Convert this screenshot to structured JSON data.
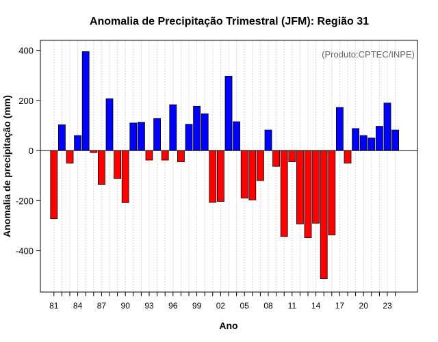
{
  "chart_data": {
    "type": "bar",
    "title": "Anomalia de Precipitação Trimestral (JFM): Região 31",
    "xlabel": "Ano",
    "ylabel": "Anomalia de precipitação (mm)",
    "annotation": "(Produto:CPTEC/INPE)",
    "ylim": [
      -565,
      440
    ],
    "yticks": [
      400,
      200,
      0,
      -200,
      -400
    ],
    "ytick_labels": [
      "400",
      "200",
      "0",
      "-200",
      "-400"
    ],
    "grid": "vertical dotted",
    "categories": [
      "1981",
      "1982",
      "1983",
      "1984",
      "1985",
      "1986",
      "1987",
      "1988",
      "1989",
      "1990",
      "1991",
      "1992",
      "1993",
      "1994",
      "1995",
      "1996",
      "1997",
      "1998",
      "1999",
      "2000",
      "2001",
      "2002",
      "2003",
      "2004",
      "2005",
      "2006",
      "2007",
      "2008",
      "2009",
      "2010",
      "2011",
      "2012",
      "2013",
      "2014",
      "2015",
      "2016",
      "2017",
      "2018",
      "2019",
      "2020",
      "2021",
      "2022",
      "2023",
      "2024"
    ],
    "xtick_labels": [
      "81",
      "",
      "",
      "84",
      "",
      "",
      "87",
      "",
      "",
      "90",
      "",
      "",
      "93",
      "",
      "",
      "96",
      "",
      "",
      "99",
      "",
      "",
      "02",
      "",
      "",
      "05",
      "",
      "",
      "08",
      "",
      "",
      "11",
      "",
      "",
      "14",
      "",
      "",
      "17",
      "",
      "",
      "20",
      "",
      "",
      "23",
      ""
    ],
    "values": [
      -272,
      103,
      -50,
      60,
      395,
      -8,
      -135,
      207,
      -112,
      -208,
      110,
      113,
      -38,
      128,
      -38,
      183,
      -45,
      105,
      177,
      147,
      -207,
      -203,
      297,
      115,
      -190,
      -197,
      -120,
      82,
      -63,
      -343,
      -45,
      -293,
      -348,
      -290,
      -512,
      -337,
      172,
      -50,
      88,
      60,
      50,
      97,
      190,
      82
    ],
    "colors": {
      "positive": "#0000ff",
      "negative": "#ff0000",
      "border": "#000000",
      "grid": "#d3d3d3"
    }
  }
}
